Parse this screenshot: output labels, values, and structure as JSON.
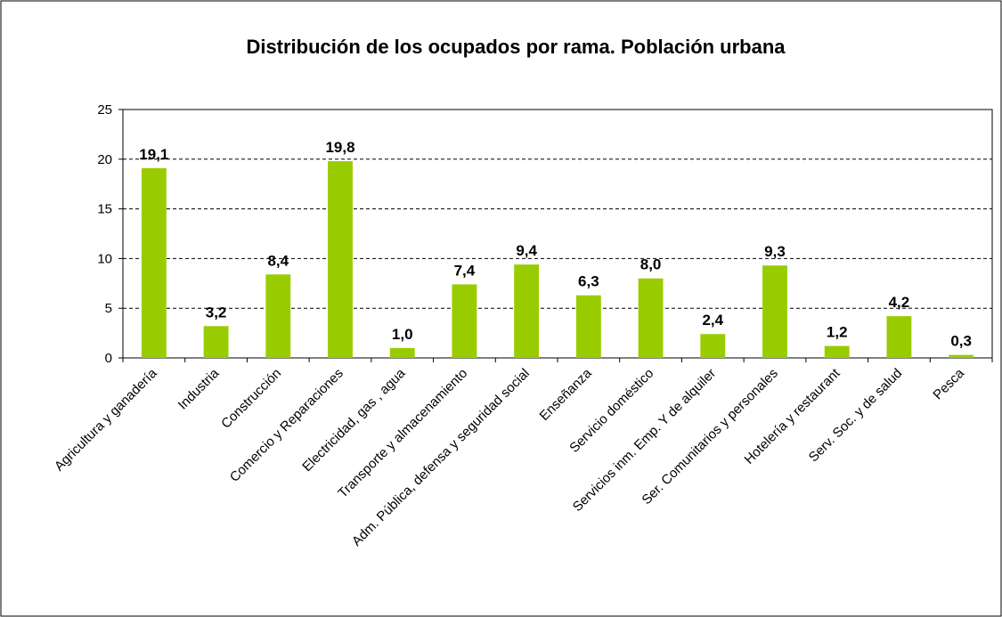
{
  "chart_data": {
    "type": "bar",
    "title": "Distribución de los ocupados por rama. Población urbana",
    "categories": [
      "Agricultura y ganadería",
      "Industria",
      "Construcción",
      "Comercio y Reparaciones",
      "Electricidad, gas , agua",
      "Transporte y almacenamiento",
      "Adm. Pública, defensa y seguridad social",
      "Enseñanza",
      "Servicio doméstico",
      "Servicios inm. Emp. Y de alquiler",
      "Ser. Comunitarios y personales",
      "Hotelería y restaurant",
      "Serv. Soc. y de salud",
      "Pesca"
    ],
    "values": [
      19.1,
      3.2,
      8.4,
      19.8,
      1.0,
      7.4,
      9.4,
      6.3,
      8.0,
      2.4,
      9.3,
      1.2,
      4.2,
      0.3
    ],
    "value_labels": [
      "19,1",
      "3,2",
      "8,4",
      "19,8",
      "1,0",
      "7,4",
      "9,4",
      "6,3",
      "8,0",
      "2,4",
      "9,3",
      "1,2",
      "4,2",
      "0,3"
    ],
    "color": "#99cc00",
    "ylim": [
      0,
      25
    ],
    "yticks": [
      0,
      5,
      10,
      15,
      20,
      25
    ],
    "grid": true
  }
}
